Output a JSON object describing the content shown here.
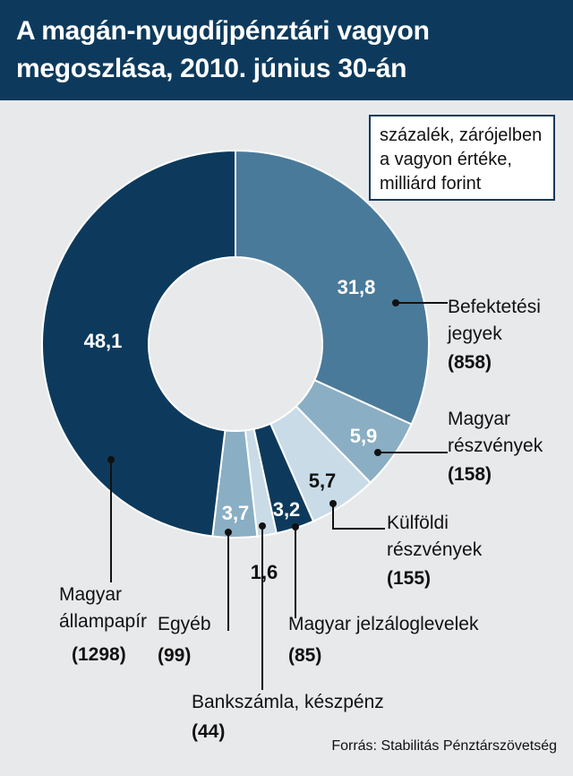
{
  "header": {
    "title_line1": "A magán-nyugdíjpénztári vagyon",
    "title_line2": "megoszlása, 2010. június 30-án"
  },
  "units_note": {
    "line1": "százalék, zárójelben",
    "line2": "a vagyon értéke,",
    "line3": "milliárd forint"
  },
  "source": "Forrás: Stabilitás Pénztárszövetség",
  "colors": {
    "header_bg": "#0d3a5c",
    "background": "#e8e9eb"
  },
  "chart_data": {
    "type": "pie",
    "donut": true,
    "start_angle_deg": 0,
    "direction": "clockwise",
    "slices": [
      {
        "label_lines": [
          "Befektetési",
          "jegyek"
        ],
        "value_text": "31,8",
        "percent": 31.8,
        "amount": "(858)",
        "color": "#4a7a9a"
      },
      {
        "label_lines": [
          "Magyar",
          "részvények"
        ],
        "value_text": "5,9",
        "percent": 5.9,
        "amount": "(158)",
        "color": "#8aaec3"
      },
      {
        "label_lines": [
          "Külföldi",
          "részvények"
        ],
        "value_text": "5,7",
        "percent": 5.7,
        "amount": "(155)",
        "color": "#c9dbe7"
      },
      {
        "label_lines": [
          "Magyar jelzáloglevelek"
        ],
        "value_text": "3,2",
        "percent": 3.2,
        "amount": "(85)",
        "color": "#0d3a5c"
      },
      {
        "label_lines": [
          "Bankszámla, készpénz"
        ],
        "value_text": "1,6",
        "percent": 1.6,
        "amount": "(44)",
        "color": "#c9dbe7"
      },
      {
        "label_lines": [
          "Egyéb"
        ],
        "value_text": "3,7",
        "percent": 3.7,
        "amount": "(99)",
        "color": "#8aaec3"
      },
      {
        "label_lines": [
          "Magyar",
          "állampapír"
        ],
        "value_text": "48,1",
        "percent": 48.1,
        "amount": "(1298)",
        "color": "#0d3a5c"
      }
    ]
  }
}
